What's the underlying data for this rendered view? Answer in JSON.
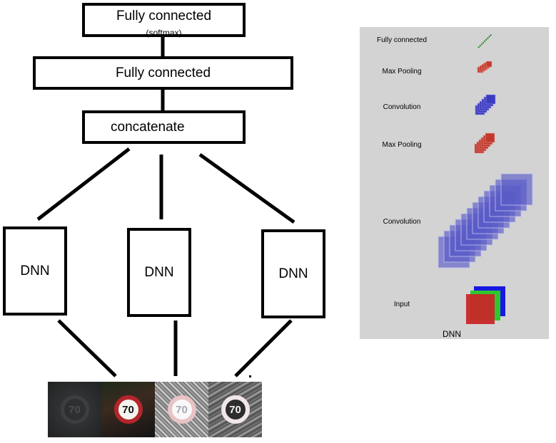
{
  "main_diagram": {
    "fc_softmax": {
      "label": "Fully connected",
      "sublabel": "(softmax)"
    },
    "fc": {
      "label": "Fully connected"
    },
    "concatenate": {
      "label": "concatenate"
    },
    "dnn_columns": [
      {
        "label": "DNN"
      },
      {
        "label": "DNN"
      },
      {
        "label": "DNN"
      }
    ],
    "input_images": [
      {
        "sign_text": "70",
        "variant": "dark"
      },
      {
        "sign_text": "70",
        "variant": "color"
      },
      {
        "sign_text": "70",
        "variant": "light-noisy"
      },
      {
        "sign_text": "70",
        "variant": "dark-noisy"
      }
    ]
  },
  "dnn_panel": {
    "caption": "DNN",
    "layers": [
      {
        "label": "Fully connected",
        "color": "#2f8a2f"
      },
      {
        "label": "Max Pooling",
        "color": "#c0392b"
      },
      {
        "label": "Convolution",
        "color": "#3b3bbf"
      },
      {
        "label": "Max Pooling",
        "color": "#c0392b"
      },
      {
        "label": "Convolution",
        "color": "#5a5ac8"
      },
      {
        "label": "Input",
        "color": "#c82828"
      }
    ]
  }
}
